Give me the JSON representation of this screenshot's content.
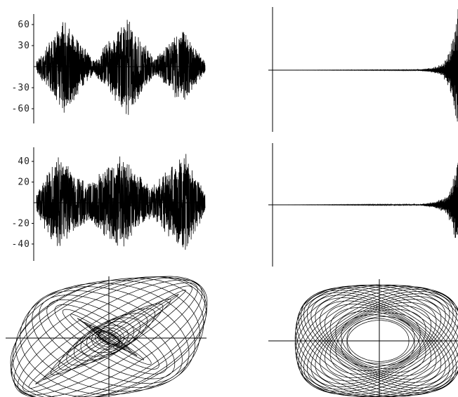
{
  "chart_data": [
    {
      "type": "line",
      "panel": "top-left",
      "yticks": [
        60,
        30,
        -30,
        -60
      ],
      "ytick_labels": [
        "60",
        "30",
        "-30",
        "-60"
      ],
      "ylim": [
        -80,
        80
      ],
      "xlim": [
        0,
        1
      ],
      "envelope_peaks": [
        {
          "x": 0.16,
          "amplitude": 68
        },
        {
          "x": 0.54,
          "amplitude": 72
        },
        {
          "x": 0.86,
          "amplitude": 55
        }
      ],
      "envelope_troughs": [
        {
          "x": 0.0,
          "amplitude": 8
        },
        {
          "x": 0.34,
          "amplitude": 10
        },
        {
          "x": 0.7,
          "amplitude": 12
        }
      ],
      "grid": false,
      "legend": "none"
    },
    {
      "type": "line",
      "panel": "top-right",
      "yticks": [],
      "ylim": [
        -80,
        80
      ],
      "xlim": [
        0,
        1
      ],
      "signal_points": [
        {
          "x": 0.0,
          "amplitude": 0
        },
        {
          "x": 0.78,
          "amplitude": 0.5
        },
        {
          "x": 0.86,
          "amplitude": 3
        },
        {
          "x": 0.92,
          "amplitude": 8
        },
        {
          "x": 0.96,
          "amplitude": 30
        },
        {
          "x": 1.0,
          "amplitude": 80
        }
      ],
      "grid": false,
      "legend": "none"
    },
    {
      "type": "line",
      "panel": "middle-left",
      "yticks": [
        40,
        20,
        -20,
        -40
      ],
      "ytick_labels": [
        "40",
        "20",
        "-20",
        "-40"
      ],
      "ylim": [
        -55,
        55
      ],
      "xlim": [
        0,
        1
      ],
      "envelope_peaks": [
        {
          "x": 0.12,
          "amplitude": 48
        },
        {
          "x": 0.5,
          "amplitude": 46
        },
        {
          "x": 0.88,
          "amplitude": 50
        }
      ],
      "envelope_troughs": [
        {
          "x": 0.0,
          "amplitude": 10
        },
        {
          "x": 0.3,
          "amplitude": 18
        },
        {
          "x": 0.68,
          "amplitude": 15
        }
      ],
      "grid": false,
      "legend": "none"
    },
    {
      "type": "line",
      "panel": "middle-right",
      "yticks": [],
      "ylim": [
        -55,
        55
      ],
      "xlim": [
        0,
        1
      ],
      "signal_points": [
        {
          "x": 0.0,
          "amplitude": 0
        },
        {
          "x": 0.8,
          "amplitude": 0.5
        },
        {
          "x": 0.88,
          "amplitude": 3
        },
        {
          "x": 0.94,
          "amplitude": 8
        },
        {
          "x": 0.97,
          "amplitude": 22
        },
        {
          "x": 1.0,
          "amplitude": 45
        }
      ],
      "grid": false,
      "legend": "none"
    },
    {
      "type": "scatter",
      "panel": "bottom-left",
      "description_type": "phase-portrait",
      "xlim": [
        -1,
        1
      ],
      "ylim": [
        -1,
        1
      ],
      "grid": false,
      "legend": "none"
    },
    {
      "type": "scatter",
      "panel": "bottom-right",
      "description_type": "phase-portrait",
      "xlim": [
        -1,
        1
      ],
      "ylim": [
        -1,
        1
      ],
      "grid": false,
      "legend": "none"
    }
  ]
}
